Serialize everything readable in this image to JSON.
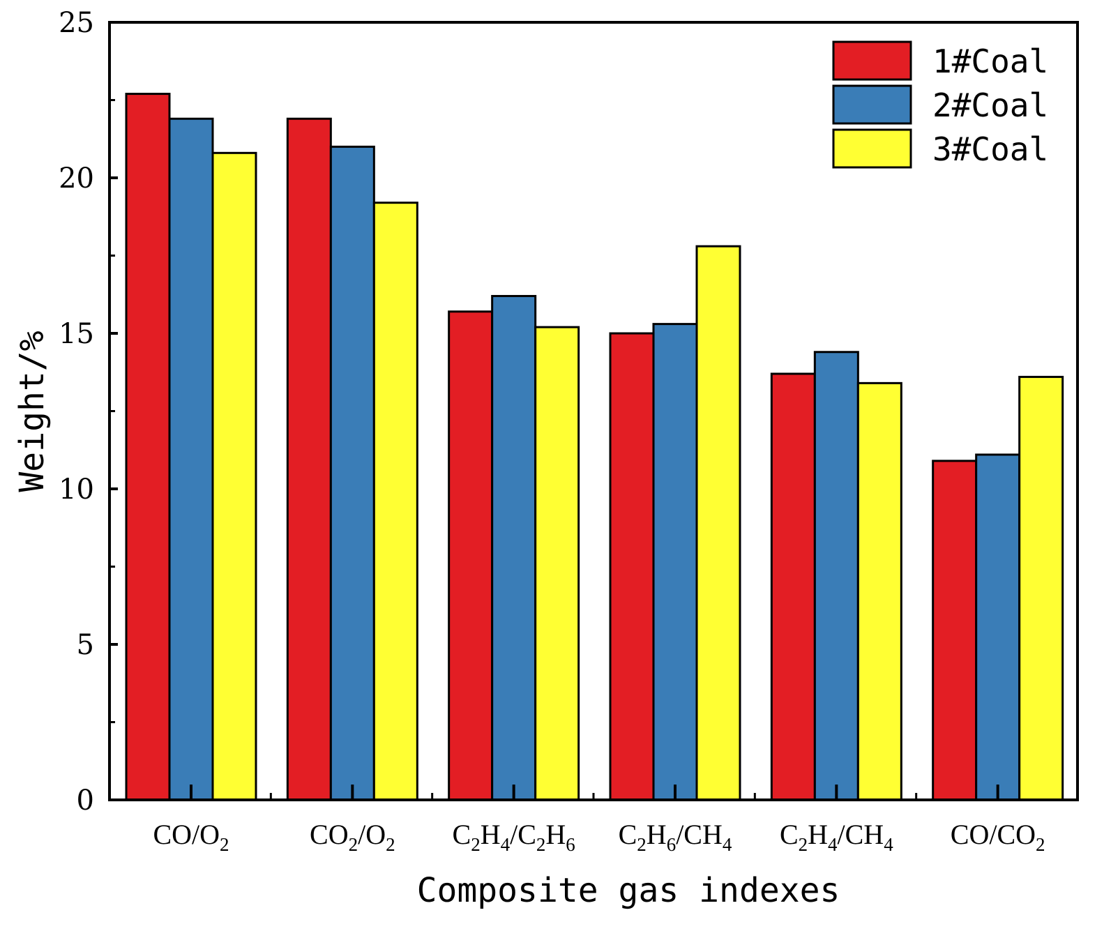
{
  "chart_data": {
    "type": "bar",
    "title": "",
    "xlabel": "Composite gas indexes",
    "ylabel": "Weight/%",
    "ylim": [
      0,
      25
    ],
    "yticks": [
      0,
      5,
      10,
      15,
      20,
      25
    ],
    "grid": false,
    "legend_position": "top-right",
    "categories": [
      {
        "label": "CO/O2",
        "parts": [
          [
            "CO/O",
            false
          ],
          [
            "2",
            true
          ]
        ]
      },
      {
        "label": "CO2/O2",
        "parts": [
          [
            "CO",
            false
          ],
          [
            "2",
            true
          ],
          [
            "/O",
            false
          ],
          [
            "2",
            true
          ]
        ]
      },
      {
        "label": "C2H4/C2H6",
        "parts": [
          [
            "C",
            false
          ],
          [
            "2",
            true
          ],
          [
            "H",
            false
          ],
          [
            "4",
            true
          ],
          [
            "/C",
            false
          ],
          [
            "2",
            true
          ],
          [
            "H",
            false
          ],
          [
            "6",
            true
          ]
        ]
      },
      {
        "label": "C2H6/CH4",
        "parts": [
          [
            "C",
            false
          ],
          [
            "2",
            true
          ],
          [
            "H",
            false
          ],
          [
            "6",
            true
          ],
          [
            "/CH",
            false
          ],
          [
            "4",
            true
          ]
        ]
      },
      {
        "label": "C2H4/CH4",
        "parts": [
          [
            "C",
            false
          ],
          [
            "2",
            true
          ],
          [
            "H",
            false
          ],
          [
            "4",
            true
          ],
          [
            "/CH",
            false
          ],
          [
            "4",
            true
          ]
        ]
      },
      {
        "label": "CO/CO2",
        "parts": [
          [
            "CO/CO",
            false
          ],
          [
            "2",
            true
          ]
        ]
      }
    ],
    "series": [
      {
        "name": "1#Coal",
        "color": "#e31e24",
        "values": [
          22.7,
          21.9,
          15.7,
          15.0,
          13.7,
          10.9
        ]
      },
      {
        "name": "2#Coal",
        "color": "#3a7db7",
        "values": [
          21.9,
          21.0,
          16.2,
          15.3,
          14.4,
          11.1
        ]
      },
      {
        "name": "3#Coal",
        "color": "#ffff33",
        "values": [
          20.8,
          19.2,
          15.2,
          17.8,
          13.4,
          13.6
        ]
      }
    ]
  }
}
